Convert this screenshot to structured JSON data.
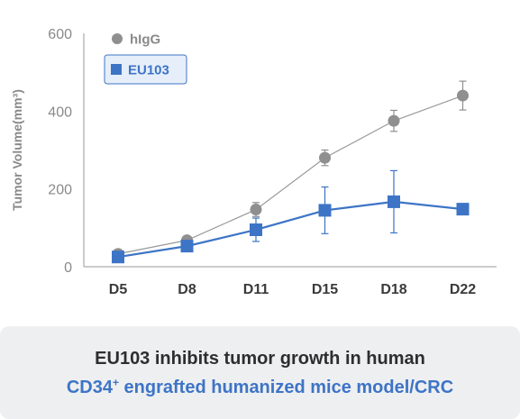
{
  "chart_data": {
    "type": "line",
    "categories": [
      "D5",
      "D8",
      "D11",
      "D15",
      "D18",
      "D22"
    ],
    "ylabel": "Tumor Volume(mm³)",
    "ylim": [
      0,
      600
    ],
    "yticks": [
      0,
      200,
      400,
      600
    ],
    "grid": false,
    "legend_position": "top-left",
    "series": [
      {
        "name": "hIgG",
        "marker": "circle",
        "color": "#8f8f8f",
        "line_color": "#9a9a9a",
        "values": [
          33,
          68,
          147,
          280,
          375,
          440
        ],
        "error": [
          4,
          7,
          18,
          20,
          27,
          37
        ]
      },
      {
        "name": "EU103",
        "marker": "square",
        "color": "#3d74c6",
        "line_color": "#3d74c6",
        "values": [
          25,
          53,
          95,
          145,
          167,
          148
        ],
        "error": [
          5,
          8,
          30,
          60,
          80,
          12
        ]
      }
    ]
  },
  "caption": {
    "line1": "EU103 inhibits tumor growth in human",
    "line2_prefix": "CD34",
    "line2_sup": "+",
    "line2_suffix": " engrafted humanized mice model/CRC"
  }
}
